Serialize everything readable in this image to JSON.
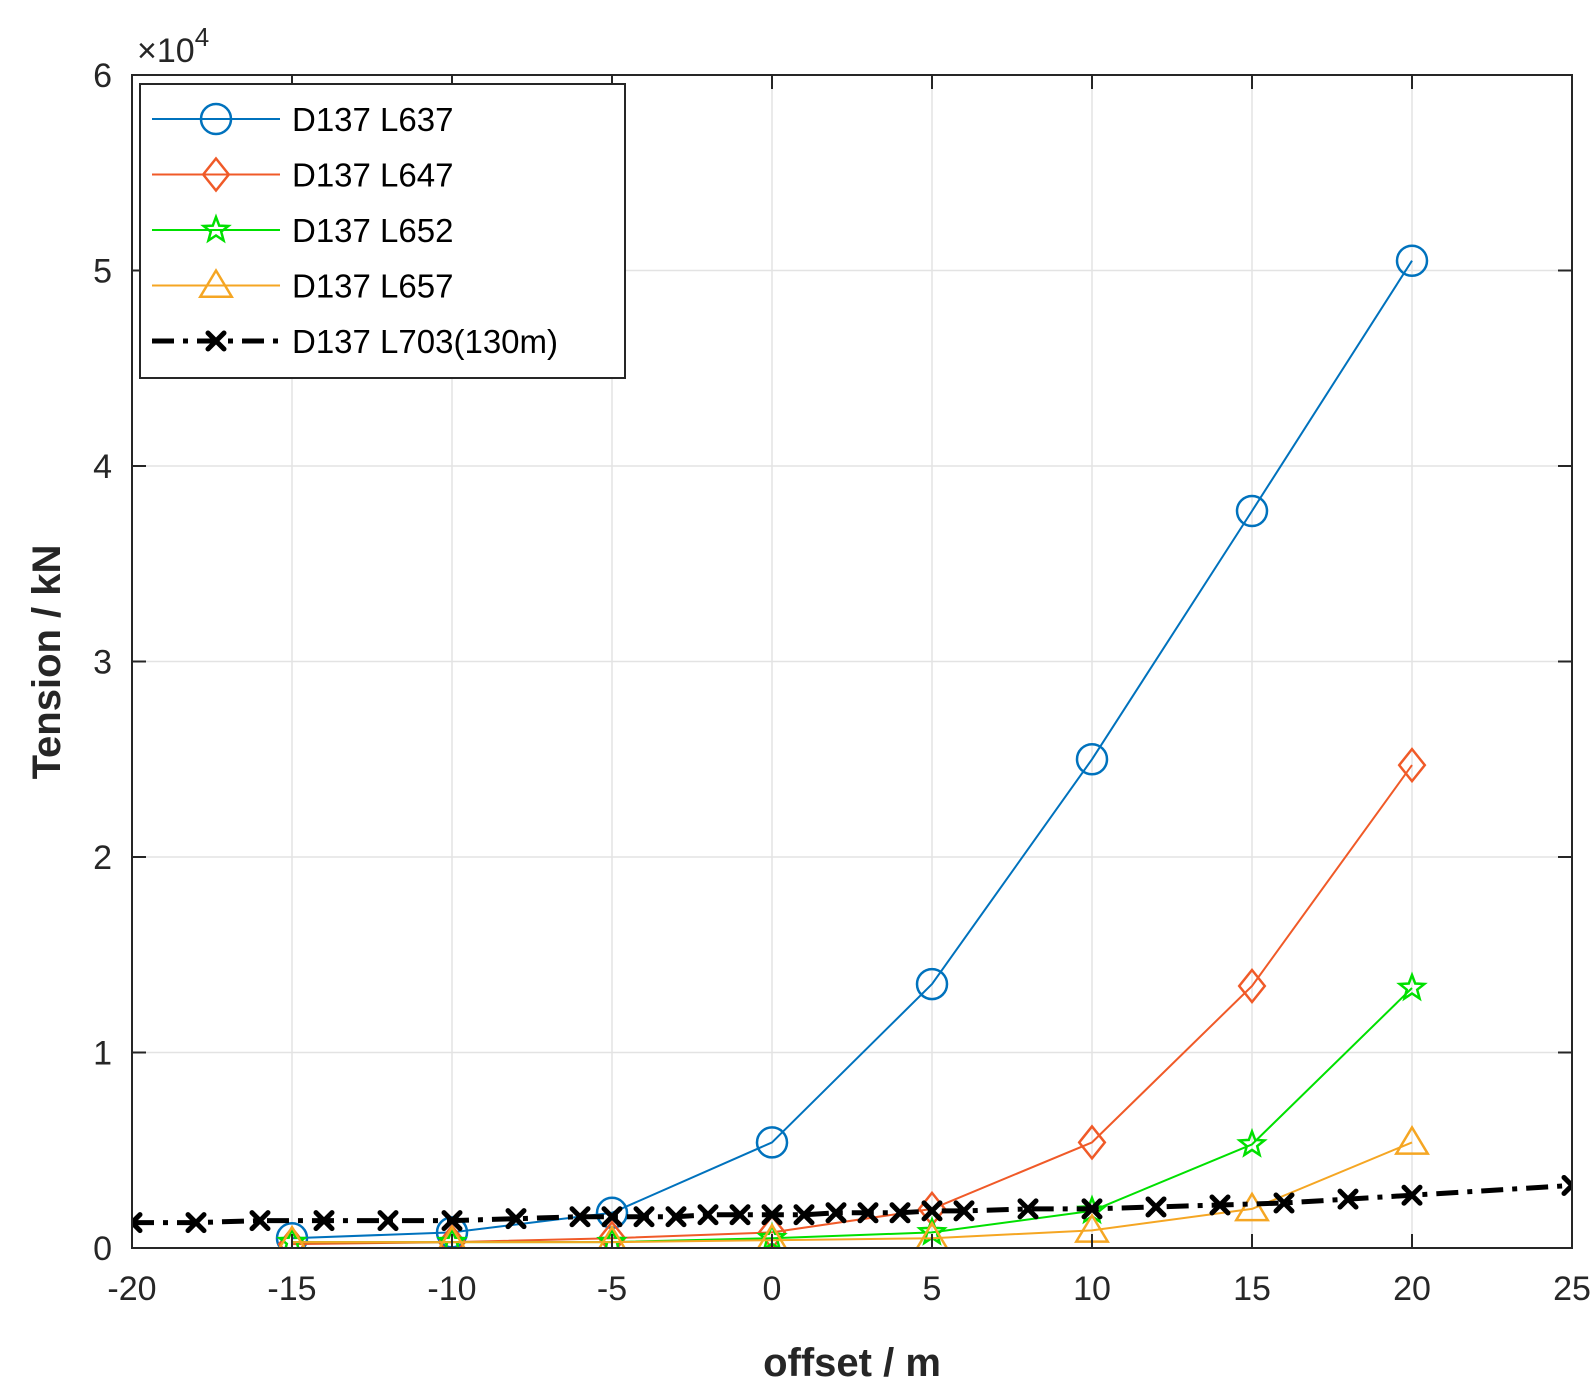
{
  "chart_data": {
    "type": "line",
    "xlabel": "offset / m",
    "ylabel": "Tension / kN",
    "y_exponent_base": "×10",
    "y_exponent_power": "4",
    "xlim": [
      -20,
      25
    ],
    "ylim": [
      0,
      6
    ],
    "xticks": [
      "-20",
      "-15",
      "-10",
      "-5",
      "0",
      "5",
      "10",
      "15",
      "20",
      "25"
    ],
    "yticks": [
      "0",
      "1",
      "2",
      "3",
      "4",
      "5",
      "6"
    ],
    "grid": true,
    "legend_position": "top-left",
    "series": [
      {
        "name": "D137 L637",
        "color": "#0072BD",
        "marker": "circle",
        "style": "solid",
        "x": [
          -15,
          -10,
          -5,
          0,
          5,
          10,
          15,
          20
        ],
        "y": [
          0.05,
          0.08,
          0.18,
          0.54,
          1.35,
          2.5,
          3.77,
          5.05
        ]
      },
      {
        "name": "D137 L647",
        "color": "#F05A28",
        "marker": "diamond",
        "style": "solid",
        "x": [
          -15,
          -10,
          -5,
          0,
          5,
          10,
          15,
          20
        ],
        "y": [
          0.02,
          0.03,
          0.05,
          0.08,
          0.2,
          0.54,
          1.34,
          2.47
        ]
      },
      {
        "name": "D137 L652",
        "color": "#00E000",
        "marker": "star",
        "style": "solid",
        "x": [
          -15,
          -10,
          -5,
          0,
          5,
          10,
          15,
          20
        ],
        "y": [
          0.03,
          0.03,
          0.03,
          0.05,
          0.08,
          0.19,
          0.53,
          1.33
        ]
      },
      {
        "name": "D137 L657",
        "color": "#F5A623",
        "marker": "triangle",
        "style": "solid",
        "x": [
          -15,
          -10,
          -5,
          0,
          5,
          10,
          15,
          20
        ],
        "y": [
          0.03,
          0.03,
          0.03,
          0.04,
          0.05,
          0.09,
          0.2,
          0.54
        ]
      },
      {
        "name": "D137 L703(130m)",
        "color": "#000000",
        "marker": "x",
        "style": "dashdot",
        "x": [
          -20,
          -18,
          -16,
          -14,
          -12,
          -10,
          -8,
          -6,
          -5,
          -4,
          -3,
          -2,
          -1,
          0,
          1,
          2,
          3,
          4,
          5,
          6,
          8,
          10,
          12,
          14,
          16,
          18,
          20,
          25
        ],
        "y": [
          0.13,
          0.13,
          0.14,
          0.14,
          0.14,
          0.14,
          0.15,
          0.16,
          0.16,
          0.16,
          0.16,
          0.17,
          0.17,
          0.17,
          0.17,
          0.18,
          0.18,
          0.18,
          0.19,
          0.19,
          0.2,
          0.2,
          0.21,
          0.22,
          0.23,
          0.25,
          0.27,
          0.32
        ]
      }
    ]
  }
}
